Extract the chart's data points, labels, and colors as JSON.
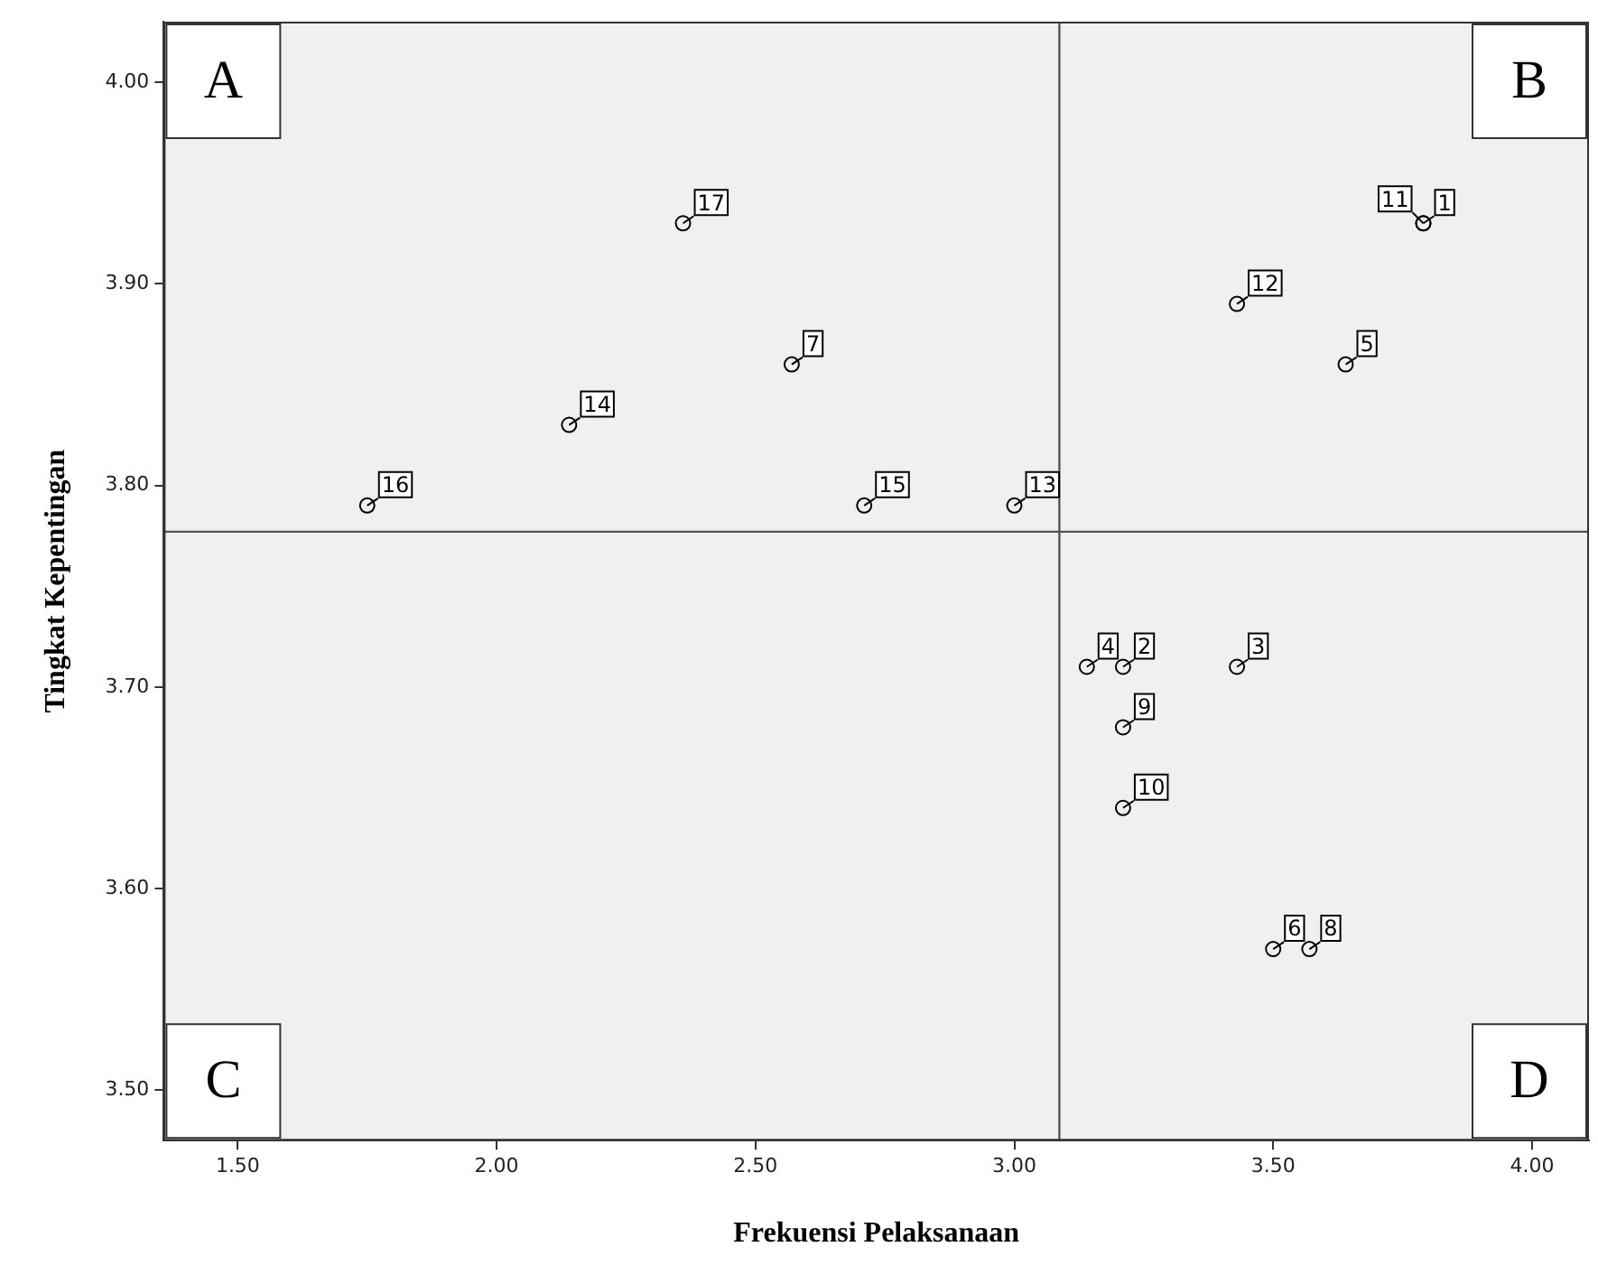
{
  "chart_data": {
    "type": "scatter",
    "xlabel": "Frekuensi Pelaksanaan",
    "ylabel": "Tingkat Kepentingan",
    "x": [
      3.79,
      3.21,
      3.43,
      3.14,
      3.64,
      3.5,
      2.57,
      3.57,
      3.21,
      3.21,
      3.79,
      3.43,
      3.0,
      2.14,
      2.71,
      1.75,
      2.36
    ],
    "series": [
      {
        "color": "#000000",
        "values": [
          3.93,
          3.71,
          3.71,
          3.71,
          3.86,
          3.57,
          3.86,
          3.57,
          3.68,
          3.64,
          3.93,
          3.89,
          3.79,
          3.83,
          3.79,
          3.79,
          3.93
        ]
      }
    ],
    "marker": "circle",
    "grid": false,
    "legend": false,
    "xlim": [
      1.357,
      4.11
    ],
    "ylim": [
      3.475,
      4.03
    ],
    "xticks": [
      {
        "value": 1.5,
        "label": "1.50"
      },
      {
        "value": 2,
        "label": "2.00"
      },
      {
        "value": 2.5,
        "label": "2.50"
      },
      {
        "value": 3,
        "label": "3.00"
      },
      {
        "value": 3.5,
        "label": "3.50"
      },
      {
        "value": 4,
        "label": "4.00"
      }
    ],
    "yticks": [
      {
        "value": 3.5,
        "label": "3.50"
      },
      {
        "value": 3.6,
        "label": "3.60"
      },
      {
        "value": 3.7,
        "label": "3.70"
      },
      {
        "value": 3.8,
        "label": "3.80"
      },
      {
        "value": 3.9,
        "label": "3.90"
      },
      {
        "value": 4,
        "label": "4.00"
      }
    ],
    "ref_lines": [
      {
        "axis": "x",
        "value": 3.087,
        "color": "#555555"
      },
      {
        "axis": "y",
        "value": 3.777,
        "color": "#555555"
      }
    ],
    "annotations": [
      "A",
      "B",
      "C",
      "D",
      {
        "text": "1",
        "x": 3.79,
        "y": 3.93
      },
      {
        "text": "2",
        "x": 3.21,
        "y": 3.71
      },
      {
        "text": "3",
        "x": 3.43,
        "y": 3.71
      },
      {
        "text": "4",
        "x": 3.14,
        "y": 3.71
      },
      {
        "text": "5",
        "x": 3.64,
        "y": 3.86
      },
      {
        "text": "6",
        "x": 3.5,
        "y": 3.57
      },
      {
        "text": "7",
        "x": 2.57,
        "y": 3.86
      },
      {
        "text": "8",
        "x": 3.57,
        "y": 3.57
      },
      {
        "text": "9",
        "x": 3.21,
        "y": 3.68
      },
      {
        "text": "10",
        "x": 3.21,
        "y": 3.64
      },
      {
        "text": "11",
        "x": 3.79,
        "y": 3.93
      },
      {
        "text": "12",
        "x": 3.43,
        "y": 3.89
      },
      {
        "text": "13",
        "x": 3.0,
        "y": 3.79
      },
      {
        "text": "14",
        "x": 2.14,
        "y": 3.83
      },
      {
        "text": "15",
        "x": 2.71,
        "y": 3.79
      },
      {
        "text": "16",
        "x": 1.75,
        "y": 3.79
      },
      {
        "text": "17",
        "x": 2.36,
        "y": 3.93
      }
    ]
  }
}
